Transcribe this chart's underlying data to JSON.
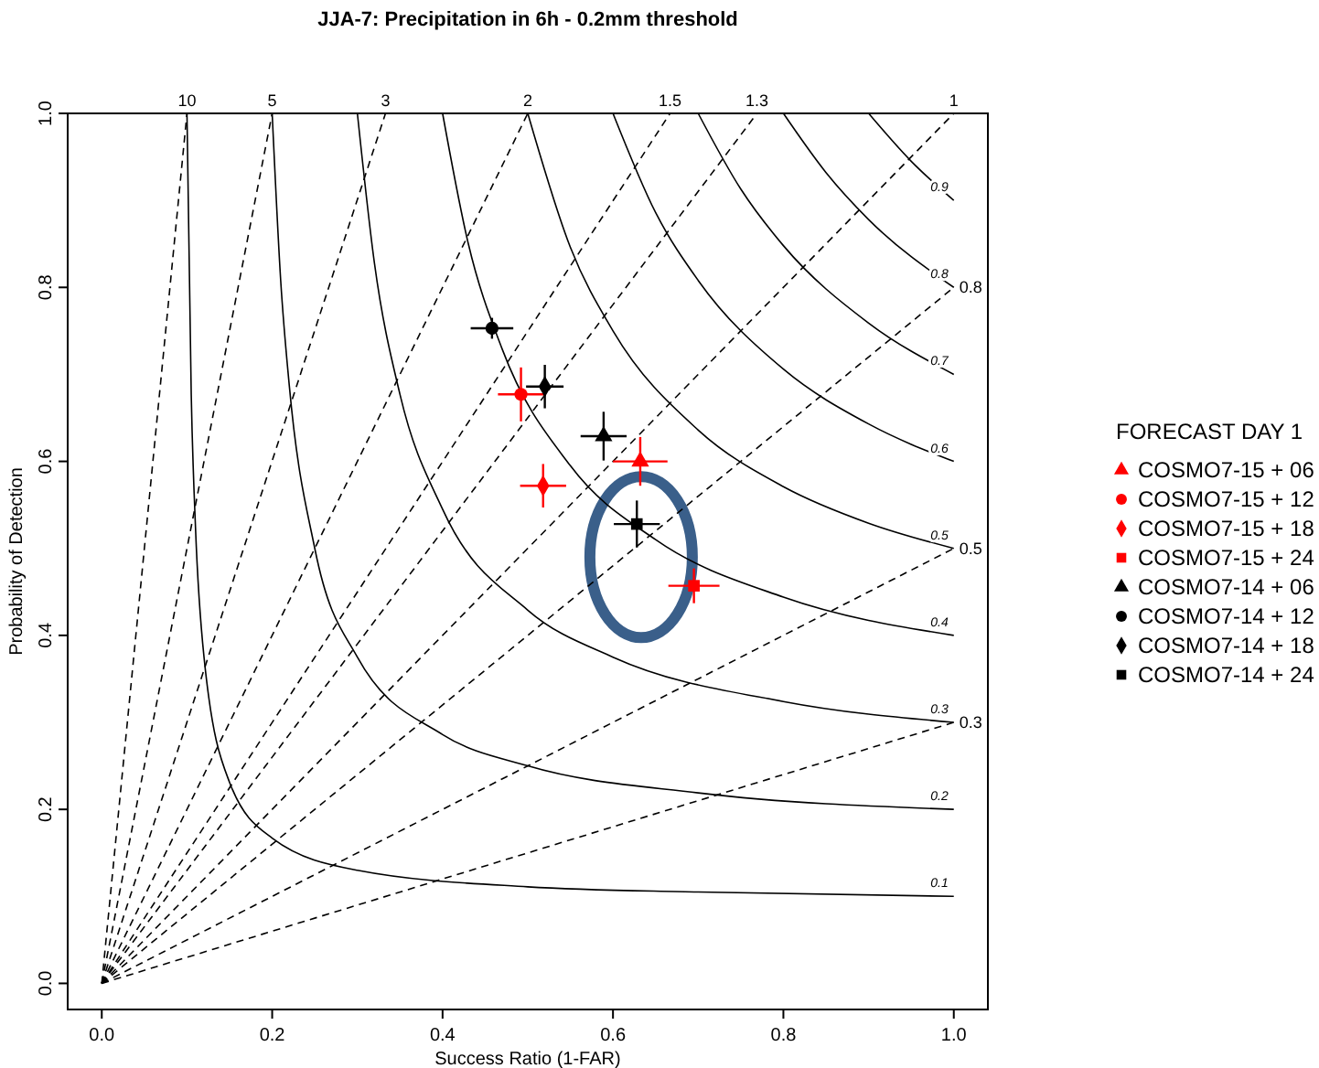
{
  "chart_data": {
    "type": "scatter",
    "title": "JJA-7: Precipitation in 6h - 0.2mm threshold",
    "xlabel": "Success Ratio (1-FAR)",
    "ylabel": "Probability of Detection",
    "legend_title": "FORECAST DAY 1",
    "legend": "right",
    "grid": false,
    "xlim": [
      -0.04,
      1.04
    ],
    "ylim": [
      -0.03,
      1.0
    ],
    "xticks": [
      {
        "value": 0,
        "label": "0.0"
      },
      0.2,
      0.4,
      0.6,
      0.8,
      {
        "value": 1,
        "label": "1.0"
      }
    ],
    "yticks": [
      {
        "value": 0,
        "label": "0.0"
      },
      0.2,
      0.4,
      0.6,
      0.8,
      {
        "value": 1,
        "label": "1.0"
      }
    ],
    "series": [
      {
        "type": "line",
        "name": "10",
        "color": "#000000",
        "line_style": "dashed",
        "marker": "none",
        "x": [
          0,
          0.1
        ],
        "values": [
          0,
          1
        ]
      },
      {
        "type": "line",
        "name": "5",
        "color": "#000000",
        "line_style": "dashed",
        "marker": "none",
        "x": [
          0,
          0.2
        ],
        "values": [
          0,
          1
        ]
      },
      {
        "type": "line",
        "name": "3",
        "color": "#000000",
        "line_style": "dashed",
        "marker": "none",
        "x": [
          0,
          0.333
        ],
        "values": [
          0,
          1
        ]
      },
      {
        "type": "line",
        "name": "2",
        "color": "#000000",
        "line_style": "dashed",
        "marker": "none",
        "x": [
          0,
          0.5
        ],
        "values": [
          0,
          1
        ]
      },
      {
        "type": "line",
        "name": "1.5",
        "color": "#000000",
        "line_style": "dashed",
        "marker": "none",
        "x": [
          0,
          0.667
        ],
        "values": [
          0,
          1
        ]
      },
      {
        "type": "line",
        "name": "1.3",
        "color": "#000000",
        "line_style": "dashed",
        "marker": "none",
        "x": [
          0,
          0.769
        ],
        "values": [
          0,
          1
        ]
      },
      {
        "type": "line",
        "name": "1",
        "color": "#000000",
        "line_style": "dashed",
        "marker": "none",
        "x": [
          0,
          1
        ],
        "values": [
          0,
          1
        ]
      },
      {
        "type": "line",
        "name": "0.8",
        "color": "#000000",
        "line_style": "dashed",
        "marker": "none",
        "x": [
          0,
          1
        ],
        "values": [
          0,
          0.8
        ]
      },
      {
        "type": "line",
        "name": "0.5",
        "color": "#000000",
        "line_style": "dashed",
        "marker": "none",
        "x": [
          0,
          1
        ],
        "values": [
          0,
          0.5
        ]
      },
      {
        "type": "line",
        "name": "0.3",
        "color": "#000000",
        "line_style": "dashed",
        "marker": "none",
        "x": [
          0,
          1
        ],
        "values": [
          0,
          0.3
        ]
      },
      {
        "type": "line",
        "name": "0.1",
        "color": "#000000",
        "line_style": "solid",
        "marker": "none",
        "x": [
          0.1,
          0.105,
          0.11,
          0.12,
          0.15,
          0.2,
          0.3,
          0.5,
          0.7,
          1
        ],
        "values": [
          1,
          0.677,
          0.524,
          0.375,
          0.231,
          0.167,
          0.13,
          0.111,
          0.105,
          0.1
        ]
      },
      {
        "type": "line",
        "name": "0.2",
        "color": "#000000",
        "line_style": "solid",
        "marker": "none",
        "x": [
          0.2,
          0.21,
          0.22,
          0.25,
          0.3,
          0.4,
          0.5,
          0.7,
          1
        ],
        "values": [
          1,
          0.808,
          0.688,
          0.5,
          0.375,
          0.286,
          0.25,
          0.219,
          0.2
        ]
      },
      {
        "type": "line",
        "name": "0.3",
        "color": "#000000",
        "line_style": "solid",
        "marker": "none",
        "x": [
          0.3,
          0.32,
          0.35,
          0.4,
          0.5,
          0.6,
          0.8,
          1
        ],
        "values": [
          1,
          0.828,
          0.677,
          0.545,
          0.429,
          0.375,
          0.324,
          0.3
        ]
      },
      {
        "type": "line",
        "name": "0.4",
        "color": "#000000",
        "line_style": "solid",
        "marker": "none",
        "x": [
          0.4,
          0.43,
          0.47,
          0.55,
          0.65,
          0.8,
          1
        ],
        "values": [
          1,
          0.851,
          0.729,
          0.595,
          0.51,
          0.444,
          0.4
        ]
      },
      {
        "type": "line",
        "name": "0.5",
        "color": "#000000",
        "line_style": "solid",
        "marker": "none",
        "x": [
          0.5,
          0.55,
          0.6,
          0.7,
          0.8,
          0.9,
          1
        ],
        "values": [
          1,
          0.846,
          0.75,
          0.636,
          0.571,
          0.529,
          0.5
        ]
      },
      {
        "type": "line",
        "name": "0.6",
        "color": "#000000",
        "line_style": "solid",
        "marker": "none",
        "x": [
          0.6,
          0.65,
          0.7,
          0.8,
          0.9,
          1
        ],
        "values": [
          1,
          0.886,
          0.808,
          0.706,
          0.643,
          0.6
        ]
      },
      {
        "type": "line",
        "name": "0.7",
        "color": "#000000",
        "line_style": "solid",
        "marker": "none",
        "x": [
          0.7,
          0.75,
          0.8,
          0.9,
          1
        ],
        "values": [
          1,
          0.913,
          0.848,
          0.759,
          0.7
        ]
      },
      {
        "type": "line",
        "name": "0.8",
        "color": "#000000",
        "line_style": "solid",
        "marker": "none",
        "x": [
          0.8,
          0.85,
          0.9,
          1
        ],
        "values": [
          1,
          0.932,
          0.878,
          0.8
        ]
      },
      {
        "type": "line",
        "name": "0.9",
        "color": "#000000",
        "line_style": "solid",
        "marker": "none",
        "x": [
          0.9,
          0.95,
          1
        ],
        "values": [
          1,
          0.945,
          0.9
        ]
      },
      {
        "name": "COSMO7-15 + 06",
        "color": "#ff0000",
        "marker": "triangle",
        "x": [
          0.632
        ],
        "values": [
          0.6
        ],
        "xerrors": [
          0.032
        ],
        "errors": [
          0.028
        ]
      },
      {
        "name": "COSMO7-15 + 12",
        "color": "#ff0000",
        "marker": "circle",
        "x": [
          0.492
        ],
        "values": [
          0.677
        ],
        "xerrors": [
          0.027
        ],
        "errors": [
          0.031
        ]
      },
      {
        "name": "COSMO7-15 + 18",
        "color": "#ff0000",
        "marker": "diamond",
        "x": [
          0.518
        ],
        "values": [
          0.572
        ],
        "xerrors": [
          0.027
        ],
        "errors": [
          0.025
        ]
      },
      {
        "name": "COSMO7-15 + 24",
        "color": "#ff0000",
        "marker": "square",
        "x": [
          0.695
        ],
        "values": [
          0.457
        ],
        "xerrors": [
          0.03
        ],
        "errors": [
          0.02
        ]
      },
      {
        "name": "COSMO7-14 + 06",
        "color": "#000000",
        "marker": "triangle",
        "x": [
          0.589
        ],
        "values": [
          0.629
        ],
        "xerrors": [
          0.027
        ],
        "errors": [
          0.028
        ]
      },
      {
        "name": "COSMO7-14 + 12",
        "color": "#000000",
        "marker": "circle",
        "x": [
          0.458
        ],
        "values": [
          0.753
        ],
        "xerrors": [
          0.025
        ],
        "errors": [
          0.012
        ]
      },
      {
        "name": "COSMO7-14 + 18",
        "color": "#000000",
        "marker": "diamond",
        "x": [
          0.52
        ],
        "values": [
          0.686
        ],
        "xerrors": [
          0.022
        ],
        "errors": [
          0.025
        ]
      },
      {
        "name": "COSMO7-14 + 24",
        "color": "#000000",
        "marker": "square",
        "x": [
          0.628
        ],
        "values": [
          0.528
        ],
        "xerrors": [
          0.027
        ],
        "errors": [
          0.027
        ]
      }
    ]
  }
}
